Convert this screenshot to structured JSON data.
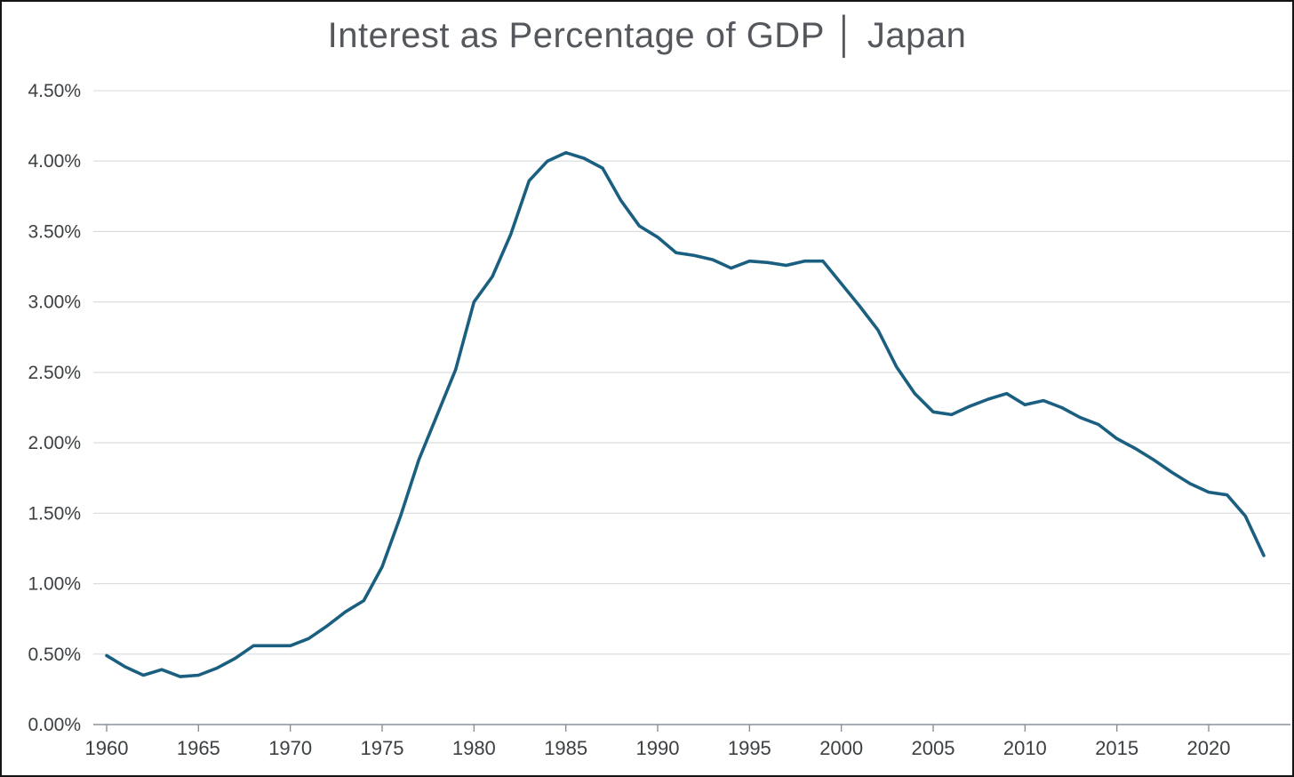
{
  "chart_data": {
    "type": "line",
    "title": "Interest as Percentage of GDP │ Japan",
    "xlabel": "",
    "ylabel": "",
    "grid": "horizontal",
    "legend": "none",
    "line_color": "#1b5f80",
    "axis_color": "#8a8f98",
    "gridline_color": "#d8dadc",
    "ylim": [
      0,
      4.5
    ],
    "y_ticks": [
      0,
      0.5,
      1.0,
      1.5,
      2.0,
      2.5,
      3.0,
      3.5,
      4.0,
      4.5
    ],
    "y_tick_labels": [
      "0.00%",
      "0.50%",
      "1.00%",
      "1.50%",
      "2.00%",
      "2.50%",
      "3.00%",
      "3.50%",
      "4.00%",
      "4.50%"
    ],
    "x_ticks": [
      1960,
      1965,
      1970,
      1975,
      1980,
      1985,
      1990,
      1995,
      2000,
      2005,
      2010,
      2015,
      2020
    ],
    "series": [
      {
        "name": "Interest as Percentage of GDP (Japan)",
        "x": [
          1960,
          1961,
          1962,
          1963,
          1964,
          1965,
          1966,
          1967,
          1968,
          1969,
          1970,
          1971,
          1972,
          1973,
          1974,
          1975,
          1976,
          1977,
          1978,
          1979,
          1980,
          1981,
          1982,
          1983,
          1984,
          1985,
          1986,
          1987,
          1988,
          1989,
          1990,
          1991,
          1992,
          1993,
          1994,
          1995,
          1996,
          1997,
          1998,
          1999,
          2000,
          2001,
          2002,
          2003,
          2004,
          2005,
          2006,
          2007,
          2008,
          2009,
          2010,
          2011,
          2012,
          2013,
          2014,
          2015,
          2016,
          2017,
          2018,
          2019,
          2020,
          2021,
          2022,
          2023
        ],
        "values": [
          0.49,
          0.41,
          0.35,
          0.39,
          0.34,
          0.35,
          0.4,
          0.47,
          0.56,
          0.56,
          0.56,
          0.61,
          0.7,
          0.8,
          0.88,
          1.12,
          1.48,
          1.88,
          2.2,
          2.52,
          3.0,
          3.18,
          3.48,
          3.86,
          4.0,
          4.06,
          4.02,
          3.95,
          3.72,
          3.54,
          3.46,
          3.35,
          3.33,
          3.3,
          3.24,
          3.29,
          3.28,
          3.26,
          3.29,
          3.29,
          3.13,
          2.97,
          2.8,
          2.54,
          2.35,
          2.22,
          2.2,
          2.26,
          2.31,
          2.35,
          2.27,
          2.3,
          2.25,
          2.18,
          2.13,
          2.03,
          1.96,
          1.88,
          1.79,
          1.71,
          1.65,
          1.63,
          1.48,
          1.2
        ]
      }
    ]
  }
}
